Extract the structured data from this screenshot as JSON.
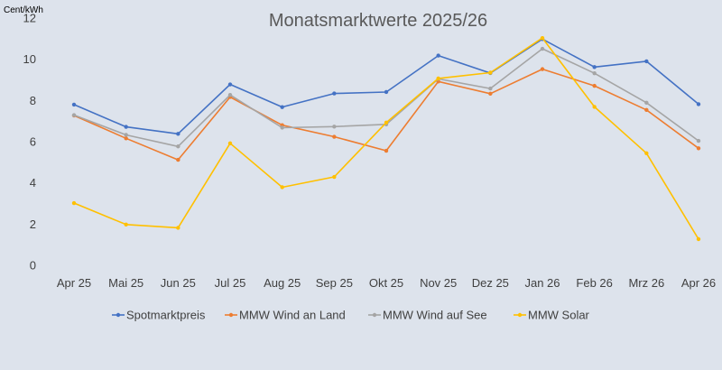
{
  "chart_data": {
    "type": "line",
    "title": "Monatsmarktwerte 2025/26",
    "unit_label": "Cent/kWh",
    "xlabel": "",
    "ylabel": "",
    "ylim": [
      0,
      12
    ],
    "yticks": [
      0,
      2,
      4,
      6,
      8,
      10,
      12
    ],
    "grid": false,
    "legend_position": "bottom",
    "categories": [
      "Apr 25",
      "Mai 25",
      "Jun 25",
      "Jul 25",
      "Aug 25",
      "Sep 25",
      "Okt 25",
      "Nov 25",
      "Dez 25",
      "Jan 26",
      "Feb 26",
      "Mrz 26",
      "Apr 26"
    ],
    "series": [
      {
        "name": "Spotmarktpreis",
        "color": "#4472c4",
        "values": [
          7.8,
          6.72,
          6.38,
          8.78,
          7.68,
          8.34,
          8.41,
          10.18,
          9.33,
          10.98,
          9.62,
          9.9,
          7.82
        ]
      },
      {
        "name": "MMW Wind an Land",
        "color": "#ed7d31",
        "values": [
          7.27,
          6.16,
          5.12,
          8.17,
          6.8,
          6.24,
          5.56,
          8.92,
          8.33,
          9.52,
          8.71,
          7.54,
          5.68
        ]
      },
      {
        "name": "MMW Wind auf See",
        "color": "#a5a5a5",
        "values": [
          7.29,
          6.33,
          5.77,
          8.27,
          6.68,
          6.73,
          6.84,
          9.05,
          8.58,
          10.51,
          9.32,
          7.89,
          6.04
        ]
      },
      {
        "name": "MMW Solar",
        "color": "#ffc000",
        "values": [
          3.02,
          1.98,
          1.82,
          5.92,
          3.79,
          4.29,
          6.93,
          9.07,
          9.35,
          11.03,
          7.69,
          5.44,
          1.27
        ]
      }
    ]
  }
}
